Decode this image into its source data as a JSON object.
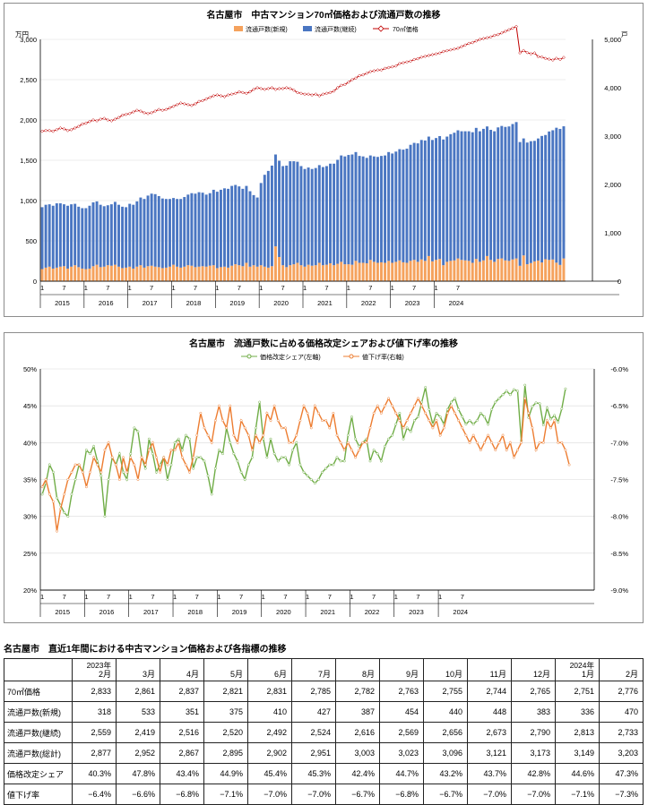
{
  "chart1": {
    "title": "名古屋市　中古マンション70㎡価格および流通戸数の推移",
    "y_left_unit": "万円",
    "y_right_unit": "戸",
    "y_left_ticks": [
      "0",
      "500",
      "1,000",
      "1,500",
      "2,000",
      "2,500",
      "3,000"
    ],
    "y_right_ticks": [
      "0",
      "1,000",
      "2,000",
      "3,000",
      "4,000",
      "5,000"
    ],
    "legend": [
      "流通戸数(新規)",
      "流通戸数(継続)",
      "70㎡価格"
    ],
    "colors": {
      "new": "#f5a25d",
      "continuing": "#4a76c2",
      "price": "#c00000"
    }
  },
  "chart2": {
    "title": "名古屋市　流通戸数に占める価格改定シェアおよび値下げ率の推移",
    "y_left_ticks": [
      "20%",
      "25%",
      "30%",
      "35%",
      "40%",
      "45%",
      "50%"
    ],
    "y_right_ticks": [
      "-9.0%",
      "-8.5%",
      "-8.0%",
      "-7.5%",
      "-7.0%",
      "-6.5%",
      "-6.0%"
    ],
    "legend": [
      "価格改定シェア(左軸)",
      "値下げ率(右軸)"
    ],
    "colors": {
      "share": "#70ad47",
      "cut": "#ed7d31"
    }
  },
  "x_axis": {
    "years": [
      "2015",
      "2016",
      "2017",
      "2018",
      "2019",
      "2020",
      "2021",
      "2022",
      "2023",
      "2024"
    ],
    "month_ticks": [
      "1",
      "7"
    ]
  },
  "chart_data": [
    {
      "type": "bar",
      "title": "名古屋市　中古マンション70㎡価格および流通戸数の推移",
      "x_start": "2015-01",
      "x_end": "2024-02",
      "ylabel": "万円",
      "y2label": "戸",
      "ylim": [
        0,
        3000
      ],
      "y2lim": [
        0,
        5000
      ],
      "grid": true,
      "legend_position": "top",
      "series": [
        {
          "name": "流通戸数(新規)",
          "type": "bar",
          "axis": "right",
          "stacked": true,
          "values": [
            250,
            280,
            300,
            260,
            280,
            300,
            310,
            260,
            300,
            330,
            290,
            260,
            250,
            260,
            310,
            340,
            290,
            300,
            330,
            320,
            340,
            300,
            270,
            280,
            300,
            260,
            300,
            330,
            280,
            310,
            320,
            300,
            290,
            270,
            280,
            300,
            340,
            300,
            280,
            300,
            330,
            320,
            290,
            300,
            310,
            300,
            320,
            330,
            270,
            290,
            300,
            280,
            320,
            350,
            330,
            310,
            380,
            300,
            330,
            300,
            330,
            300,
            280,
            310,
            720,
            500,
            330,
            290,
            330,
            350,
            380,
            330,
            300,
            340,
            320,
            330,
            380,
            330,
            340,
            370,
            330,
            360,
            400,
            350,
            350,
            340,
            420,
            380,
            380,
            370,
            440,
            400,
            380,
            390,
            380,
            420,
            380,
            400,
            430,
            390,
            380,
            420,
            440,
            400,
            450,
            420,
            520,
            410,
            440,
            460,
            330,
            400,
            420,
            430,
            470,
            440,
            430,
            420,
            380,
            460,
            400,
            430,
            520,
            440,
            400,
            460,
            470,
            430,
            420,
            450,
            470,
            318,
            533,
            351,
            375,
            410,
            427,
            387,
            454,
            440,
            448,
            383,
            336,
            470
          ]
        },
        {
          "name": "流通戸数(継続)",
          "type": "bar",
          "axis": "right",
          "stacked": true,
          "values": [
            1280,
            1300,
            1290,
            1300,
            1330,
            1310,
            1280,
            1300,
            1290,
            1270,
            1250,
            1250,
            1260,
            1300,
            1320,
            1310,
            1290,
            1250,
            1240,
            1270,
            1300,
            1280,
            1270,
            1250,
            1300,
            1320,
            1350,
            1400,
            1420,
            1460,
            1490,
            1500,
            1470,
            1440,
            1420,
            1400,
            1380,
            1400,
            1420,
            1440,
            1460,
            1500,
            1520,
            1540,
            1520,
            1490,
            1500,
            1560,
            1580,
            1600,
            1620,
            1630,
            1650,
            1640,
            1630,
            1600,
            1590,
            1560,
            1450,
            1430,
            1700,
            1900,
            2000,
            2080,
            1900,
            1990,
            2050,
            2100,
            2150,
            2130,
            2090,
            2050,
            2020,
            2010,
            2000,
            2010,
            2020,
            2030,
            2040,
            2060,
            2100,
            2150,
            2200,
            2230,
            2260,
            2280,
            2250,
            2210,
            2200,
            2180,
            2160,
            2180,
            2190,
            2200,
            2220,
            2250,
            2260,
            2280,
            2300,
            2330,
            2360,
            2400,
            2420,
            2450,
            2470,
            2490,
            2470,
            2510,
            2520,
            2540,
            2600,
            2590,
            2620,
            2640,
            2650,
            2660,
            2670,
            2680,
            2700,
            2710,
            2700,
            2720,
            2680,
            2690,
            2700,
            2720,
            2740,
            2760,
            2780,
            2800,
            2820,
            2559,
            2419,
            2516,
            2520,
            2492,
            2524,
            2616,
            2569,
            2656,
            2673,
            2790,
            2813,
            2733
          ]
        },
        {
          "name": "70㎡価格",
          "type": "line",
          "axis": "left",
          "values": [
            1860,
            1870,
            1870,
            1860,
            1880,
            1900,
            1890,
            1870,
            1880,
            1900,
            1920,
            1950,
            1960,
            1980,
            2000,
            1990,
            2010,
            2020,
            2000,
            1990,
            2010,
            2030,
            2060,
            2070,
            2080,
            2100,
            2120,
            2110,
            2090,
            2080,
            2090,
            2110,
            2130,
            2120,
            2130,
            2150,
            2170,
            2190,
            2210,
            2200,
            2190,
            2180,
            2200,
            2230,
            2240,
            2260,
            2280,
            2300,
            2310,
            2300,
            2290,
            2310,
            2320,
            2330,
            2350,
            2340,
            2330,
            2350,
            2380,
            2400,
            2390,
            2380,
            2390,
            2400,
            2380,
            2390,
            2390,
            2400,
            2390,
            2370,
            2340,
            2330,
            2320,
            2320,
            2310,
            2320,
            2300,
            2320,
            2330,
            2340,
            2360,
            2400,
            2430,
            2440,
            2470,
            2500,
            2520,
            2550,
            2560,
            2580,
            2600,
            2610,
            2620,
            2620,
            2640,
            2650,
            2660,
            2670,
            2700,
            2710,
            2720,
            2730,
            2750,
            2760,
            2780,
            2790,
            2800,
            2810,
            2820,
            2830,
            2850,
            2860,
            2870,
            2880,
            2890,
            2910,
            2930,
            2950,
            2960,
            2980,
            3000,
            3010,
            3020,
            3030,
            3050,
            3060,
            3080,
            3100,
            3120,
            3140,
            3160,
            2833,
            2861,
            2837,
            2821,
            2831,
            2785,
            2782,
            2763,
            2755,
            2744,
            2765,
            2751,
            2776
          ]
        }
      ]
    },
    {
      "type": "line",
      "title": "名古屋市　流通戸数に占める価格改定シェアおよび値下げ率の推移",
      "x_start": "2015-01",
      "x_end": "2024-02",
      "ylim": [
        20,
        50
      ],
      "y2lim": [
        -9.0,
        -6.0
      ],
      "grid": true,
      "legend_position": "top",
      "series": [
        {
          "name": "価格改定シェア(左軸)",
          "axis": "left",
          "unit": "%",
          "values": [
            33.0,
            34.5,
            37.0,
            36.0,
            32.5,
            31.5,
            30.5,
            30.0,
            33.0,
            35.0,
            37.0,
            36.0,
            39.0,
            38.5,
            39.5,
            37.5,
            35.5,
            30.0,
            35.0,
            38.0,
            37.0,
            38.5,
            36.0,
            35.0,
            38.5,
            42.0,
            41.5,
            38.0,
            36.5,
            40.5,
            38.5,
            36.0,
            37.0,
            38.0,
            35.0,
            37.0,
            40.0,
            40.5,
            39.0,
            41.0,
            40.5,
            36.5,
            38.0,
            38.0,
            37.5,
            35.5,
            33.0,
            36.5,
            39.0,
            38.5,
            42.0,
            40.0,
            38.5,
            37.5,
            36.0,
            35.0,
            37.0,
            38.0,
            42.0,
            45.5,
            40.5,
            38.0,
            40.5,
            38.5,
            37.5,
            38.0,
            38.0,
            37.0,
            39.0,
            40.0,
            37.0,
            36.0,
            35.5,
            35.0,
            34.5,
            35.0,
            36.0,
            36.5,
            37.0,
            37.0,
            38.0,
            37.5,
            37.5,
            41.0,
            43.5,
            40.5,
            39.5,
            40.0,
            40.5,
            37.5,
            39.0,
            38.5,
            37.5,
            39.5,
            40.5,
            41.0,
            42.5,
            44.0,
            40.5,
            42.0,
            41.5,
            43.0,
            43.5,
            45.5,
            47.5,
            44.5,
            42.5,
            44.0,
            43.5,
            42.5,
            44.5,
            45.5,
            46.0,
            44.5,
            43.5,
            42.5,
            43.0,
            42.5,
            43.0,
            44.0,
            43.5,
            42.5,
            44.5,
            45.5,
            46.0,
            46.5,
            47.0,
            46.5,
            47.2,
            47.0,
            40.3,
            47.8,
            43.4,
            44.9,
            45.4,
            45.3,
            42.4,
            44.7,
            43.2,
            43.7,
            42.8,
            44.6,
            47.3
          ]
        },
        {
          "name": "値下げ率(右軸)",
          "axis": "right",
          "unit": "%",
          "values": [
            -7.6,
            -7.5,
            -7.7,
            -7.8,
            -8.2,
            -7.9,
            -7.7,
            -7.5,
            -7.4,
            -7.3,
            -7.3,
            -7.4,
            -7.6,
            -7.4,
            -7.2,
            -7.3,
            -7.4,
            -7.1,
            -7.0,
            -7.2,
            -7.3,
            -7.5,
            -7.2,
            -7.4,
            -7.2,
            -7.3,
            -7.5,
            -7.2,
            -7.3,
            -7.1,
            -7.0,
            -7.2,
            -7.4,
            -7.2,
            -7.3,
            -7.1,
            -7.1,
            -7.0,
            -7.2,
            -7.3,
            -7.4,
            -7.2,
            -6.9,
            -6.6,
            -6.8,
            -6.9,
            -7.0,
            -6.7,
            -6.5,
            -6.7,
            -6.8,
            -6.5,
            -6.9,
            -7.0,
            -6.7,
            -6.8,
            -6.9,
            -7.1,
            -6.9,
            -7.0,
            -6.9,
            -6.6,
            -6.7,
            -6.5,
            -6.7,
            -6.8,
            -6.8,
            -7.0,
            -7.0,
            -6.9,
            -6.7,
            -6.5,
            -6.6,
            -6.8,
            -6.5,
            -6.6,
            -6.7,
            -6.7,
            -6.8,
            -6.6,
            -6.9,
            -7.0,
            -7.1,
            -7.0,
            -7.1,
            -7.2,
            -7.1,
            -7.0,
            -7.0,
            -6.8,
            -6.6,
            -6.5,
            -6.6,
            -6.5,
            -6.4,
            -6.5,
            -6.6,
            -6.7,
            -6.8,
            -6.7,
            -6.6,
            -6.5,
            -6.4,
            -6.5,
            -6.6,
            -6.7,
            -6.8,
            -6.7,
            -6.9,
            -6.8,
            -6.6,
            -6.5,
            -6.6,
            -6.7,
            -6.8,
            -6.9,
            -7.0,
            -6.9,
            -7.0,
            -7.1,
            -7.0,
            -6.9,
            -7.0,
            -7.1,
            -7.0,
            -6.9,
            -7.1,
            -7.0,
            -7.2,
            -7.1,
            -7.0,
            -6.4,
            -6.6,
            -6.8,
            -7.1,
            -7.0,
            -7.0,
            -6.7,
            -6.8,
            -6.7,
            -7.0,
            -7.0,
            -7.1,
            -7.3
          ]
        }
      ]
    },
    {
      "type": "table",
      "title": "名古屋市　直近1年間における中古マンション価格および各指標の推移",
      "columns": [
        {
          "year": "2023年",
          "month": "2月"
        },
        {
          "year": "",
          "month": "3月"
        },
        {
          "year": "",
          "month": "4月"
        },
        {
          "year": "",
          "month": "5月"
        },
        {
          "year": "",
          "month": "6月"
        },
        {
          "year": "",
          "month": "7月"
        },
        {
          "year": "",
          "month": "8月"
        },
        {
          "year": "",
          "month": "9月"
        },
        {
          "year": "",
          "month": "10月"
        },
        {
          "year": "",
          "month": "11月"
        },
        {
          "year": "",
          "month": "12月"
        },
        {
          "year": "2024年",
          "month": "1月"
        },
        {
          "year": "",
          "month": "2月"
        }
      ],
      "rows": [
        {
          "label": "70㎡価格",
          "values": [
            "2,833",
            "2,861",
            "2,837",
            "2,821",
            "2,831",
            "2,785",
            "2,782",
            "2,763",
            "2,755",
            "2,744",
            "2,765",
            "2,751",
            "2,776"
          ]
        },
        {
          "label": "流通戸数(新規)",
          "values": [
            "318",
            "533",
            "351",
            "375",
            "410",
            "427",
            "387",
            "454",
            "440",
            "448",
            "383",
            "336",
            "470"
          ]
        },
        {
          "label": "流通戸数(継続)",
          "values": [
            "2,559",
            "2,419",
            "2,516",
            "2,520",
            "2,492",
            "2,524",
            "2,616",
            "2,569",
            "2,656",
            "2,673",
            "2,790",
            "2,813",
            "2,733"
          ]
        },
        {
          "label": "流通戸数(総計)",
          "values": [
            "2,877",
            "2,952",
            "2,867",
            "2,895",
            "2,902",
            "2,951",
            "3,003",
            "3,023",
            "3,096",
            "3,121",
            "3,173",
            "3,149",
            "3,203"
          ]
        },
        {
          "label": "価格改定シェア",
          "values": [
            "40.3%",
            "47.8%",
            "43.4%",
            "44.9%",
            "45.4%",
            "45.3%",
            "42.4%",
            "44.7%",
            "43.2%",
            "43.7%",
            "42.8%",
            "44.6%",
            "47.3%"
          ]
        },
        {
          "label": "値下げ率",
          "values": [
            "−6.4%",
            "−6.6%",
            "−6.8%",
            "−7.1%",
            "−7.0%",
            "−7.0%",
            "−6.7%",
            "−6.8%",
            "−6.7%",
            "−7.0%",
            "−7.0%",
            "−7.1%",
            "−7.3%"
          ]
        }
      ]
    }
  ]
}
